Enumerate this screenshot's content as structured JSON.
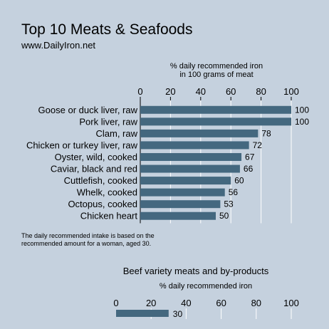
{
  "title": "Top 10 Meats & Seafoods",
  "subtitle": "www.DailyIron.net",
  "note_lines": [
    "The daily recommended intake is based on the",
    "recommended amount for a woman, aged 30."
  ],
  "colors": {
    "background": "#c5d1de",
    "bar": "#44687f",
    "grid": "#ffffff"
  },
  "chart_data": [
    {
      "type": "bar",
      "orientation": "horizontal",
      "axis_caption": [
        "% daily recommended iron",
        "in 100 grams of meat"
      ],
      "categories": [
        "Goose or duck liver, raw",
        "Pork liver, raw",
        "Clam, raw",
        "Chicken or turkey liver, raw",
        "Oyster, wild, cooked",
        "Caviar, black and red",
        "Cuttlefish, cooked",
        "Whelk, cooked",
        "Octopus, cooked",
        "Chicken heart"
      ],
      "values": [
        100,
        100,
        78,
        72,
        67,
        66,
        60,
        56,
        53,
        50
      ],
      "xlim": [
        0,
        100
      ],
      "xticks": [
        0,
        20,
        40,
        60,
        80,
        100
      ],
      "axis_position": "top",
      "grid": true
    },
    {
      "type": "bar",
      "orientation": "horizontal",
      "title": "Beef variety meats and by-products",
      "axis_caption": [
        "% daily recommended iron"
      ],
      "categories": [
        ""
      ],
      "values": [
        30
      ],
      "xlim": [
        0,
        100
      ],
      "xticks": [
        0,
        20,
        40,
        60,
        80,
        100
      ],
      "axis_position": "top",
      "grid": true
    }
  ]
}
